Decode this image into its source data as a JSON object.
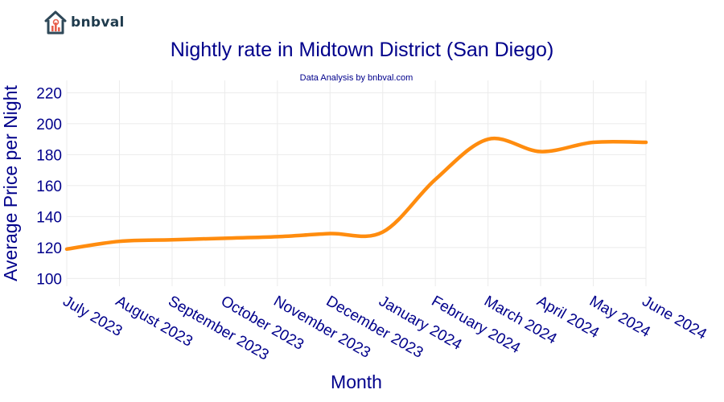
{
  "brand": {
    "name": "bnbval"
  },
  "chart_data": {
    "type": "line",
    "title": "Nightly rate in Midtown District (San Diego)",
    "subtitle": "Data Analysis by bnbval.com",
    "xlabel": "Month",
    "ylabel": "Average Price per Night",
    "categories": [
      "July 2023",
      "August 2023",
      "September 2023",
      "October 2023",
      "November 2023",
      "December 2023",
      "January 2024",
      "February 2024",
      "March 2024",
      "April 2024",
      "May 2024",
      "June 2024"
    ],
    "series": [
      {
        "values": [
          119,
          124,
          125,
          126,
          127,
          129,
          130,
          164,
          190,
          182,
          188,
          188
        ]
      }
    ],
    "ylim": [
      95,
      228
    ],
    "yticks": [
      100,
      120,
      140,
      160,
      180,
      200,
      220
    ],
    "grid": true,
    "line_color": "#ff8c0e",
    "text_color": "#00008b"
  }
}
